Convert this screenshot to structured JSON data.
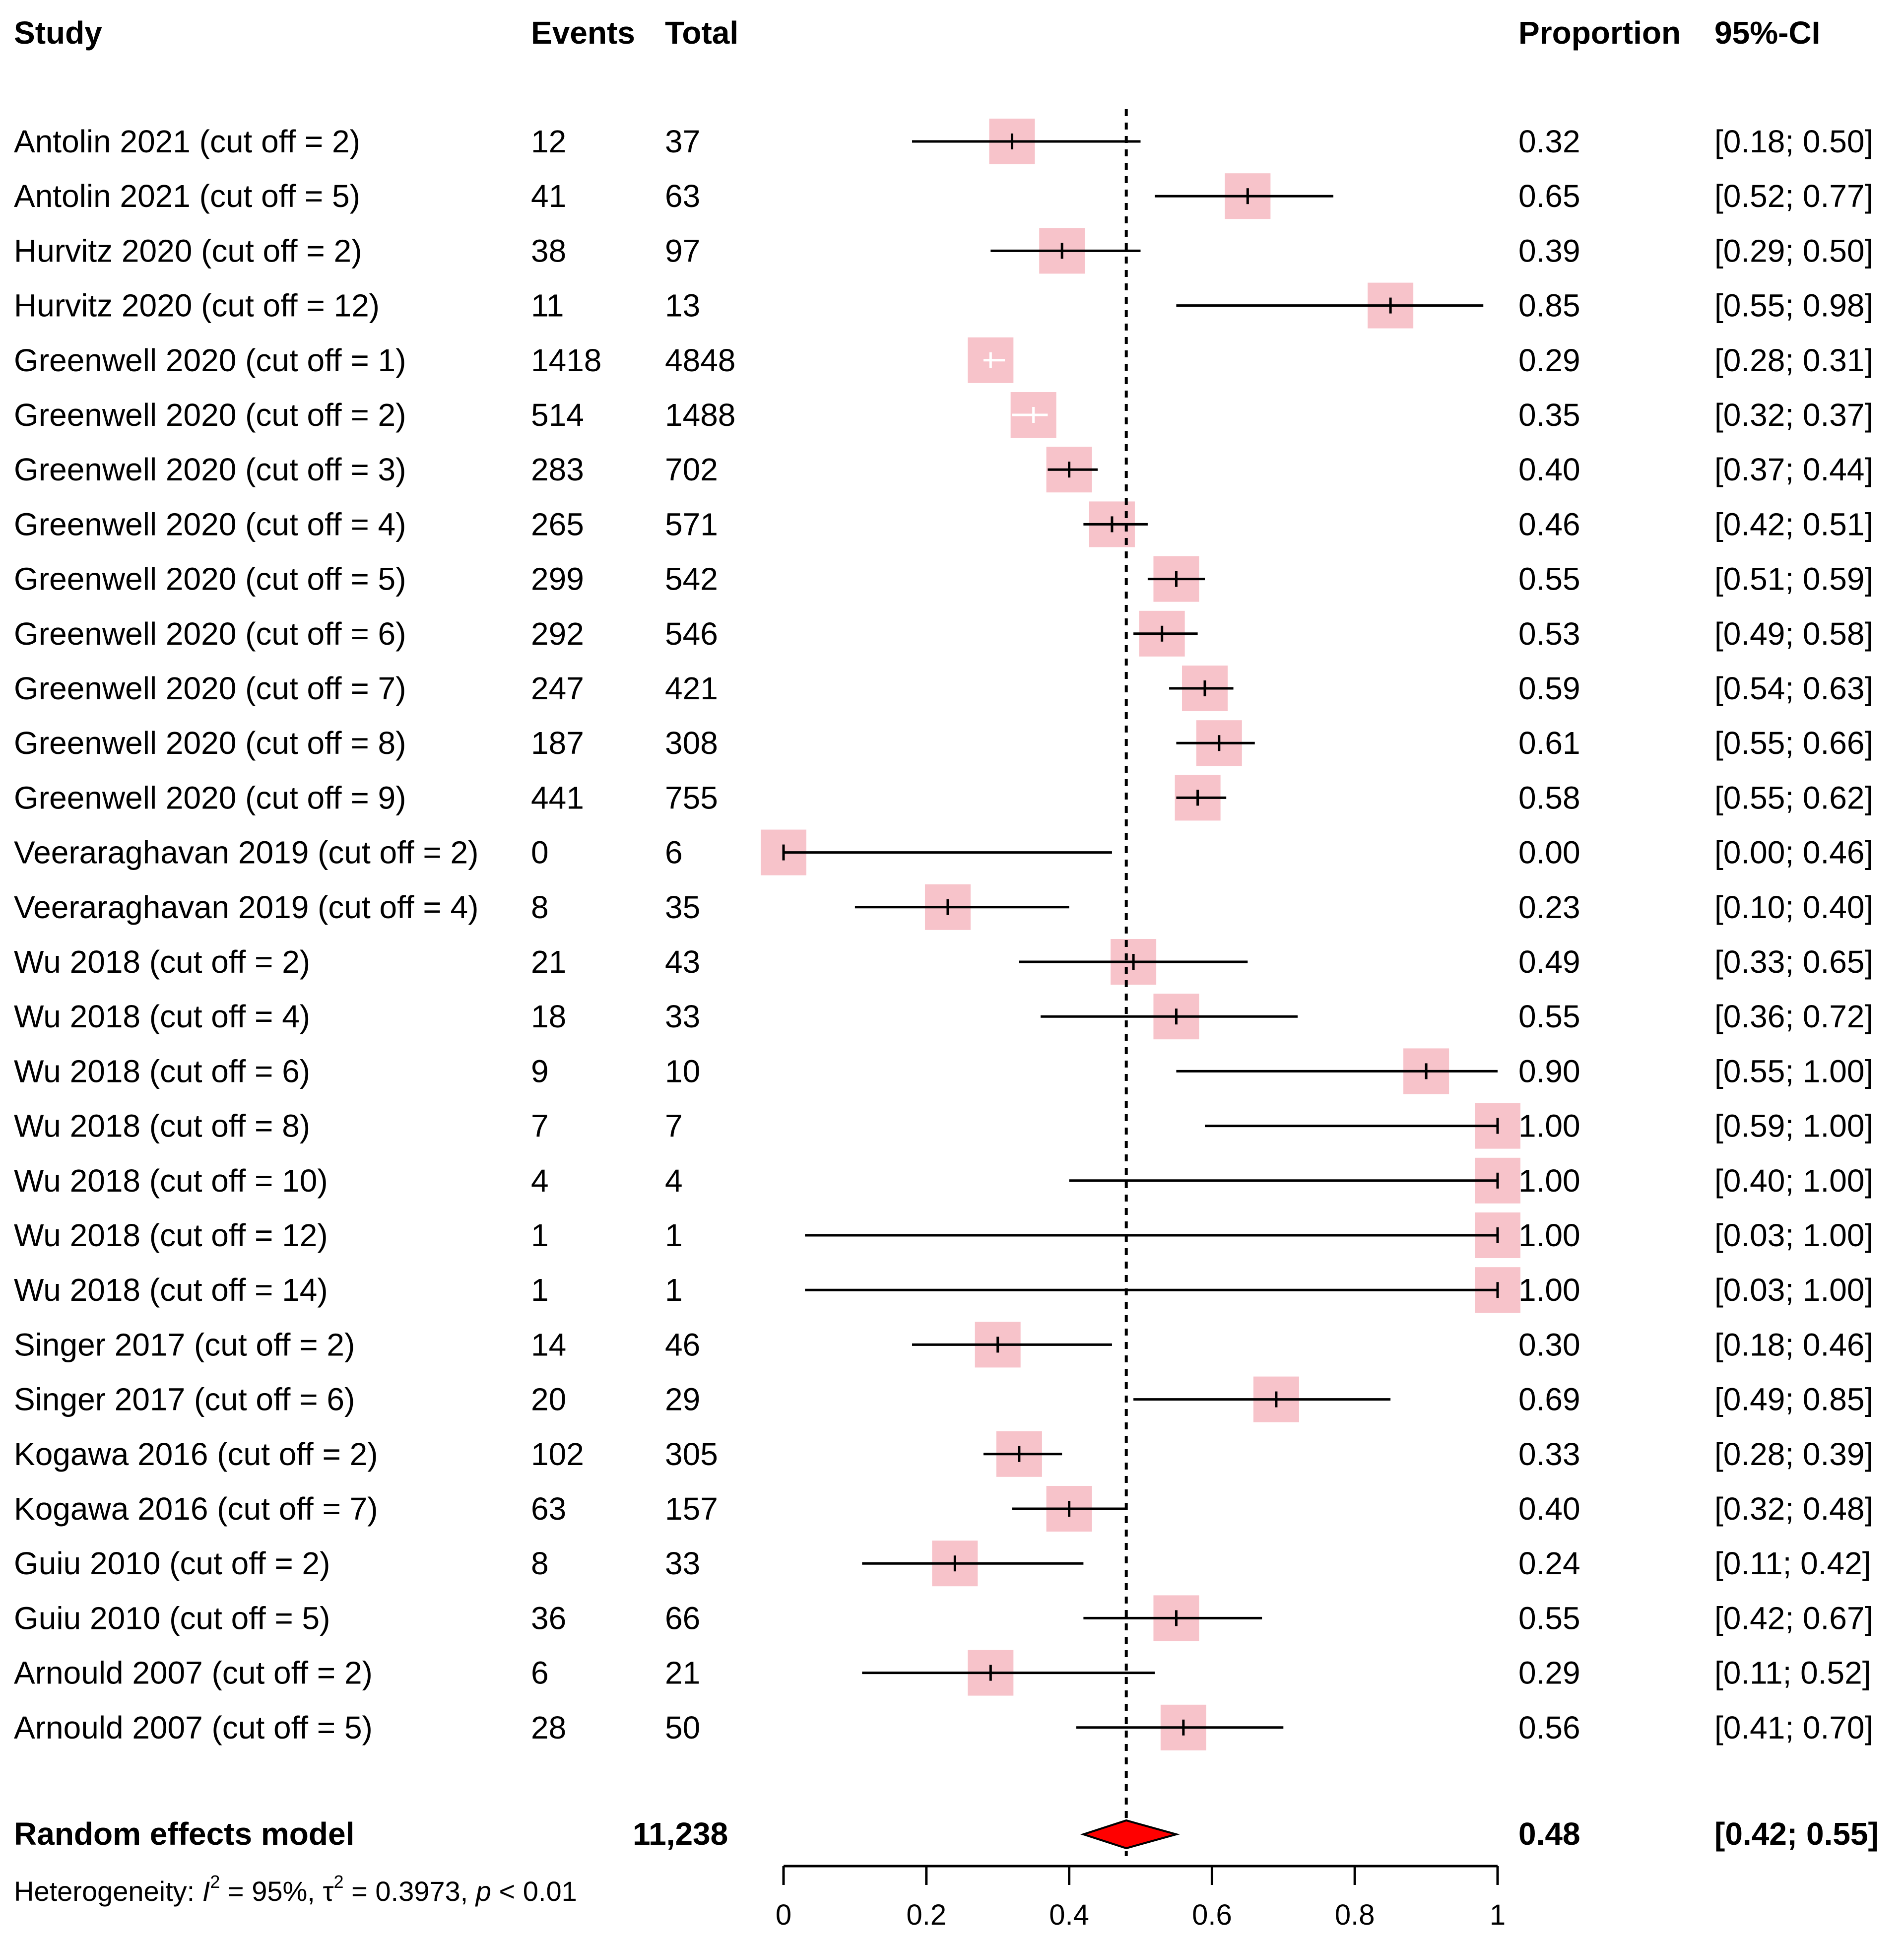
{
  "chart_data": {
    "type": "forest",
    "headers": {
      "study": "Study",
      "events": "Events",
      "total": "Total",
      "proportion": "Proportion",
      "ci": "95%-CI"
    },
    "x_ticks": [
      "0",
      "0.2",
      "0.4",
      "0.6",
      "0.8",
      "1"
    ],
    "xlim": [
      0,
      1
    ],
    "reference_line": 0.48,
    "studies": [
      {
        "study": "Antolin 2021 (cut off = 2)",
        "events": "12",
        "total": "37",
        "prop": 0.32,
        "lo": 0.18,
        "hi": 0.5,
        "prop_text": "0.32",
        "ci_text": "[0.18; 0.50]"
      },
      {
        "study": "Antolin 2021 (cut off = 5)",
        "events": "41",
        "total": "63",
        "prop": 0.65,
        "lo": 0.52,
        "hi": 0.77,
        "prop_text": "0.65",
        "ci_text": "[0.52; 0.77]"
      },
      {
        "study": "Hurvitz 2020 (cut off = 2)",
        "events": "38",
        "total": "97",
        "prop": 0.39,
        "lo": 0.29,
        "hi": 0.5,
        "prop_text": "0.39",
        "ci_text": "[0.29; 0.50]"
      },
      {
        "study": "Hurvitz 2020 (cut off = 12)",
        "events": "11",
        "total": "13",
        "prop": 0.85,
        "lo": 0.55,
        "hi": 0.98,
        "prop_text": "0.85",
        "ci_text": "[0.55; 0.98]"
      },
      {
        "study": "Greenwell 2020 (cut off = 1)",
        "events": "1418",
        "total": "4848",
        "prop": 0.29,
        "lo": 0.28,
        "hi": 0.31,
        "prop_text": "0.29",
        "ci_text": "[0.28; 0.31]"
      },
      {
        "study": "Greenwell 2020 (cut off = 2)",
        "events": "514",
        "total": "1488",
        "prop": 0.35,
        "lo": 0.32,
        "hi": 0.37,
        "prop_text": "0.35",
        "ci_text": "[0.32; 0.37]"
      },
      {
        "study": "Greenwell 2020 (cut off = 3)",
        "events": "283",
        "total": "702",
        "prop": 0.4,
        "lo": 0.37,
        "hi": 0.44,
        "prop_text": "0.40",
        "ci_text": "[0.37; 0.44]"
      },
      {
        "study": "Greenwell 2020 (cut off = 4)",
        "events": "265",
        "total": "571",
        "prop": 0.46,
        "lo": 0.42,
        "hi": 0.51,
        "prop_text": "0.46",
        "ci_text": "[0.42; 0.51]"
      },
      {
        "study": "Greenwell 2020 (cut off = 5)",
        "events": "299",
        "total": "542",
        "prop": 0.55,
        "lo": 0.51,
        "hi": 0.59,
        "prop_text": "0.55",
        "ci_text": "[0.51; 0.59]"
      },
      {
        "study": "Greenwell 2020 (cut off = 6)",
        "events": "292",
        "total": "546",
        "prop": 0.53,
        "lo": 0.49,
        "hi": 0.58,
        "prop_text": "0.53",
        "ci_text": "[0.49; 0.58]"
      },
      {
        "study": "Greenwell 2020 (cut off = 7)",
        "events": "247",
        "total": "421",
        "prop": 0.59,
        "lo": 0.54,
        "hi": 0.63,
        "prop_text": "0.59",
        "ci_text": "[0.54; 0.63]"
      },
      {
        "study": "Greenwell 2020 (cut off = 8)",
        "events": "187",
        "total": "308",
        "prop": 0.61,
        "lo": 0.55,
        "hi": 0.66,
        "prop_text": "0.61",
        "ci_text": "[0.55; 0.66]"
      },
      {
        "study": "Greenwell 2020 (cut off = 9)",
        "events": "441",
        "total": "755",
        "prop": 0.58,
        "lo": 0.55,
        "hi": 0.62,
        "prop_text": "0.58",
        "ci_text": "[0.55; 0.62]"
      },
      {
        "study": "Veeraraghavan 2019 (cut off = 2)",
        "events": "0",
        "total": "6",
        "prop": 0.0,
        "lo": 0.0,
        "hi": 0.46,
        "prop_text": "0.00",
        "ci_text": "[0.00; 0.46]"
      },
      {
        "study": "Veeraraghavan 2019 (cut off = 4)",
        "events": "8",
        "total": "35",
        "prop": 0.23,
        "lo": 0.1,
        "hi": 0.4,
        "prop_text": "0.23",
        "ci_text": "[0.10; 0.40]"
      },
      {
        "study": "Wu 2018 (cut off = 2)",
        "events": "21",
        "total": "43",
        "prop": 0.49,
        "lo": 0.33,
        "hi": 0.65,
        "prop_text": "0.49",
        "ci_text": "[0.33; 0.65]"
      },
      {
        "study": "Wu 2018 (cut off = 4)",
        "events": "18",
        "total": "33",
        "prop": 0.55,
        "lo": 0.36,
        "hi": 0.72,
        "prop_text": "0.55",
        "ci_text": "[0.36; 0.72]"
      },
      {
        "study": "Wu 2018 (cut off = 6)",
        "events": "9",
        "total": "10",
        "prop": 0.9,
        "lo": 0.55,
        "hi": 1.0,
        "prop_text": "0.90",
        "ci_text": "[0.55; 1.00]"
      },
      {
        "study": "Wu 2018 (cut off = 8)",
        "events": "7",
        "total": "7",
        "prop": 1.0,
        "lo": 0.59,
        "hi": 1.0,
        "prop_text": "1.00",
        "ci_text": "[0.59; 1.00]"
      },
      {
        "study": "Wu 2018 (cut off = 10)",
        "events": "4",
        "total": "4",
        "prop": 1.0,
        "lo": 0.4,
        "hi": 1.0,
        "prop_text": "1.00",
        "ci_text": "[0.40; 1.00]"
      },
      {
        "study": "Wu 2018 (cut off = 12)",
        "events": "1",
        "total": "1",
        "prop": 1.0,
        "lo": 0.03,
        "hi": 1.0,
        "prop_text": "1.00",
        "ci_text": "[0.03; 1.00]"
      },
      {
        "study": "Wu 2018 (cut off = 14)",
        "events": "1",
        "total": "1",
        "prop": 1.0,
        "lo": 0.03,
        "hi": 1.0,
        "prop_text": "1.00",
        "ci_text": "[0.03; 1.00]"
      },
      {
        "study": "Singer 2017 (cut off = 2)",
        "events": "14",
        "total": "46",
        "prop": 0.3,
        "lo": 0.18,
        "hi": 0.46,
        "prop_text": "0.30",
        "ci_text": "[0.18; 0.46]"
      },
      {
        "study": "Singer 2017 (cut off = 6)",
        "events": "20",
        "total": "29",
        "prop": 0.69,
        "lo": 0.49,
        "hi": 0.85,
        "prop_text": "0.69",
        "ci_text": "[0.49; 0.85]"
      },
      {
        "study": "Kogawa 2016 (cut off = 2)",
        "events": "102",
        "total": "305",
        "prop": 0.33,
        "lo": 0.28,
        "hi": 0.39,
        "prop_text": "0.33",
        "ci_text": "[0.28; 0.39]"
      },
      {
        "study": "Kogawa 2016 (cut off = 7)",
        "events": "63",
        "total": "157",
        "prop": 0.4,
        "lo": 0.32,
        "hi": 0.48,
        "prop_text": "0.40",
        "ci_text": "[0.32; 0.48]"
      },
      {
        "study": "Guiu 2010 (cut off = 2)",
        "events": "8",
        "total": "33",
        "prop": 0.24,
        "lo": 0.11,
        "hi": 0.42,
        "prop_text": "0.24",
        "ci_text": "[0.11; 0.42]"
      },
      {
        "study": "Guiu 2010 (cut off = 5)",
        "events": "36",
        "total": "66",
        "prop": 0.55,
        "lo": 0.42,
        "hi": 0.67,
        "prop_text": "0.55",
        "ci_text": "[0.42; 0.67]"
      },
      {
        "study": "Arnould 2007 (cut off = 2)",
        "events": "6",
        "total": "21",
        "prop": 0.29,
        "lo": 0.11,
        "hi": 0.52,
        "prop_text": "0.29",
        "ci_text": "[0.11; 0.52]"
      },
      {
        "study": "Arnould 2007 (cut off = 5)",
        "events": "28",
        "total": "50",
        "prop": 0.56,
        "lo": 0.41,
        "hi": 0.7,
        "prop_text": "0.56",
        "ci_text": "[0.41; 0.70]"
      }
    ],
    "summary": {
      "label": "Random effects model",
      "total": "11,238",
      "prop": 0.48,
      "lo": 0.42,
      "hi": 0.55,
      "prop_text": "0.48",
      "ci_text": "[0.42; 0.55]"
    },
    "heterogeneity": {
      "prefix": "Heterogeneity: ",
      "i2_symbol": "I",
      "i2_value": " = 95%, ",
      "tau2_symbol": "τ",
      "tau2_value": " = 0.3973, ",
      "p_symbol": "p",
      "p_value": " < 0.01"
    },
    "colors": {
      "box": "#f7c3ca",
      "diamond": "#ff0000",
      "line": "#000000",
      "inner_tick_on_small_ci": "#ffffff"
    }
  }
}
